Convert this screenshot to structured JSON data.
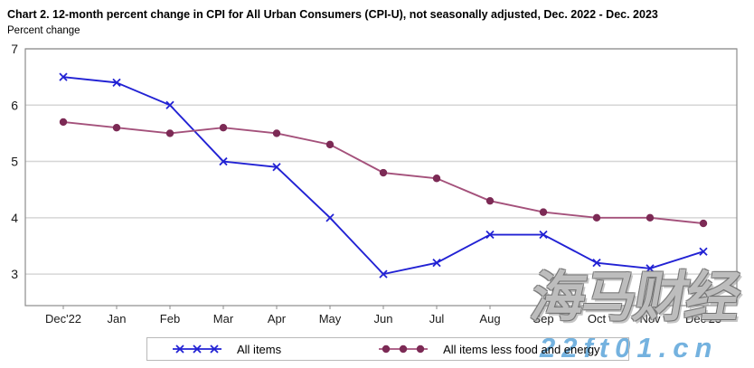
{
  "title": "Chart 2. 12-month percent change in CPI for All Urban Consumers (CPI-U), not seasonally adjusted, Dec. 2022 - Dec. 2023",
  "subtitle": "Percent change",
  "chart_data": {
    "type": "line",
    "title": "Chart 2. 12-month percent change in CPI for All Urban Consumers (CPI-U), not seasonally adjusted, Dec. 2022 - Dec. 2023",
    "xlabel": "",
    "ylabel": "Percent change",
    "categories": [
      "Dec'22",
      "Jan",
      "Feb",
      "Mar",
      "Apr",
      "May",
      "Jun",
      "Jul",
      "Aug",
      "Sep",
      "Oct",
      "Nov",
      "Dec'23"
    ],
    "series": [
      {
        "name": "All items",
        "marker": "x",
        "color": "#2222D4",
        "values": [
          6.5,
          6.4,
          6.0,
          5.0,
          4.9,
          4.0,
          3.0,
          3.2,
          3.7,
          3.7,
          3.2,
          3.1,
          3.4
        ]
      },
      {
        "name": "All items less food and energy",
        "marker": "circle",
        "color": "#A4517B",
        "marker_color": "#7C2A55",
        "values": [
          5.7,
          5.6,
          5.5,
          5.6,
          5.5,
          5.3,
          4.8,
          4.7,
          4.3,
          4.1,
          4.0,
          4.0,
          3.9
        ]
      }
    ],
    "ylim": [
      2.44,
      7
    ],
    "yticks": [
      3,
      4,
      5,
      6,
      7
    ],
    "grid": true,
    "legend_position": "bottom-center"
  },
  "colors": {
    "grid": "#D6D6D6",
    "plot_border": "#8C8C8C",
    "axis_text": "#1A1A1A",
    "legend_border": "#B9B9B9",
    "watermark_blue": "#74B2DF"
  },
  "watermark": {
    "line1": "海马财经",
    "line2": "22ft01.cn"
  }
}
